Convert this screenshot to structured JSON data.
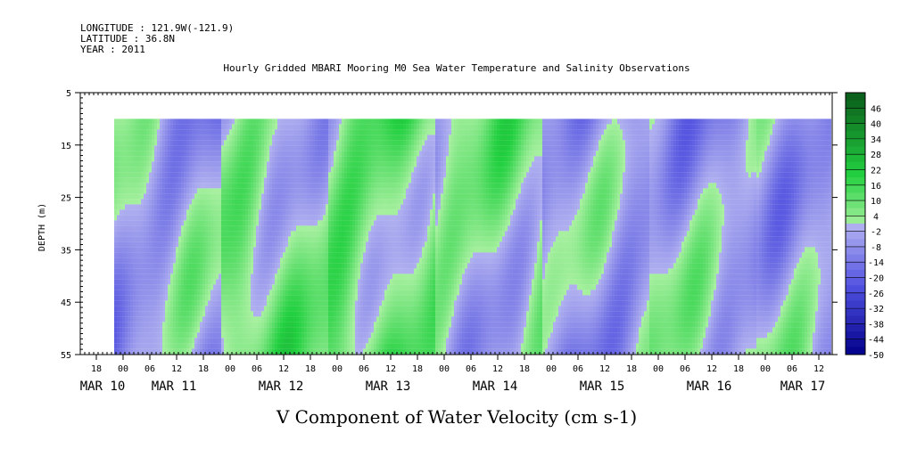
{
  "header": {
    "longitude": "LONGITUDE : 121.9W(-121.9)",
    "latitude": "LATITUDE : 36.8N",
    "year": "YEAR : 2011"
  },
  "chart_data": {
    "type": "heatmap",
    "title": "Hourly Gridded MBARI Mooring M0 Sea Water Temperature and Salinity Observations",
    "xlabel": "V Component of Water Velocity (cm s-1)",
    "ylabel": "DEPTH (m)",
    "y_ticks": [
      "5",
      "15",
      "25",
      "35",
      "45",
      "55"
    ],
    "ylim": [
      5,
      55
    ],
    "y_inverted": true,
    "data_depth_range": [
      10,
      55
    ],
    "hour_ticks": [
      "18",
      "00",
      "06",
      "12",
      "18",
      "00",
      "06",
      "12",
      "18",
      "00",
      "06",
      "12",
      "18",
      "00",
      "06",
      "12",
      "18",
      "00",
      "06",
      "12",
      "18",
      "00",
      "06",
      "12",
      "18",
      "00",
      "06",
      "12",
      "18",
      "00",
      "06",
      "12"
    ],
    "day_labels": [
      "MAR 10",
      "MAR 11",
      "MAR 12",
      "MAR 13",
      "MAR 14",
      "MAR 15",
      "MAR 16",
      "MAR 17"
    ],
    "colorbar": {
      "labels": [
        "46",
        "40",
        "34",
        "28",
        "22",
        "16",
        "10",
        "4",
        "-2",
        "-8",
        "-14",
        "-20",
        "-26",
        "-32",
        "-38",
        "-44",
        "-50"
      ],
      "min": -50,
      "max": 52,
      "step": 3,
      "colors": {
        "positive_dark": "#0a5a1a",
        "positive_mid": "#22d040",
        "positive_light": "#a8f0a0",
        "negative_light": "#b0b0f0",
        "negative_mid": "#5050e0",
        "negative_dark": "#00008a"
      }
    },
    "series": [
      {
        "values_description_free": true,
        "day_means_cm_s": [
          -6,
          4,
          10,
          2,
          -8,
          -4,
          -2,
          4
        ]
      }
    ]
  }
}
